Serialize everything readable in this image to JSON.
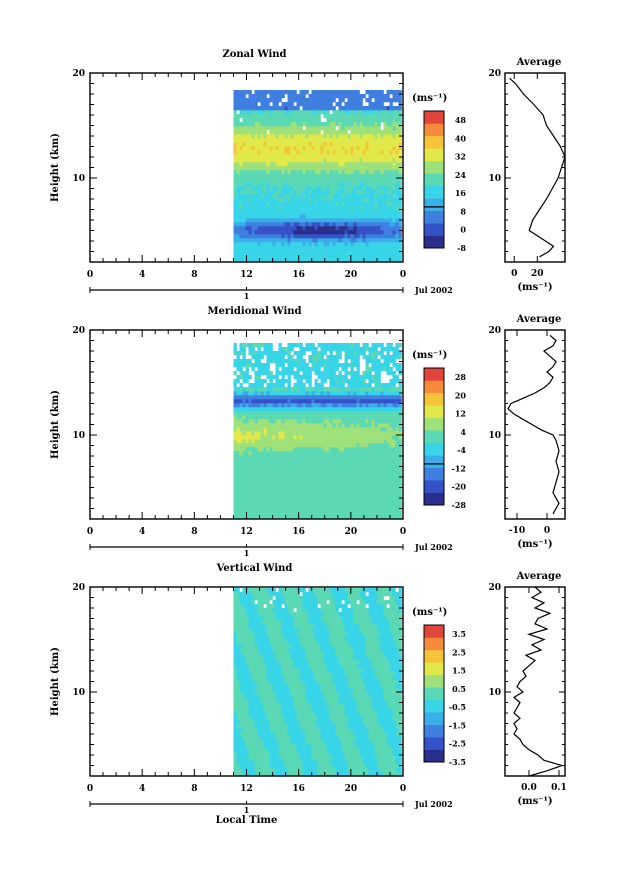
{
  "figure": {
    "xlabel": "Local Time"
  },
  "chart_data": [
    {
      "type": "heatmap",
      "title": "Zonal Wind",
      "ylabel": "Height (km)",
      "ylim": [
        2,
        20
      ],
      "y_ticks": [
        10,
        20
      ],
      "x_ticks": [
        "0",
        "4",
        "8",
        "12",
        "16",
        "20",
        "0"
      ],
      "day_label": "1",
      "date_label": "Jul 2002",
      "data_start_hour": 11,
      "data_top_km": 18.2,
      "colorbar": {
        "unit": "(ms⁻¹)",
        "ticks": [
          "48",
          "40",
          "32",
          "24",
          "16",
          "8",
          "0",
          "-8"
        ],
        "zero_contour": true
      },
      "pattern": {
        "description_values": "Zonal wind speed, stronger near 12-13 km (~32-36 m/s), weak near 5 km (~0-8 m/s)",
        "profile_kind": "zonal"
      },
      "average": {
        "title": "Average",
        "xlabel": "(ms⁻¹)",
        "xlim": [
          -8,
          44
        ],
        "x_ticks": [
          0,
          20
        ],
        "ylim": [
          2,
          20
        ],
        "y_ticks": [
          10,
          20
        ],
        "profile": [
          [
            2.5,
            22
          ],
          [
            3.0,
            30
          ],
          [
            3.5,
            34
          ],
          [
            4.0,
            27
          ],
          [
            4.5,
            20
          ],
          [
            5.0,
            13
          ],
          [
            6.0,
            16
          ],
          [
            7.0,
            22
          ],
          [
            8.0,
            28
          ],
          [
            9.0,
            33
          ],
          [
            10.0,
            38
          ],
          [
            11.0,
            41
          ],
          [
            12.0,
            44
          ],
          [
            13.0,
            40
          ],
          [
            14.0,
            34
          ],
          [
            15.0,
            28
          ],
          [
            16.0,
            25
          ],
          [
            17.0,
            17
          ],
          [
            18.0,
            8
          ],
          [
            19.0,
            1
          ],
          [
            19.5,
            -4
          ]
        ]
      }
    },
    {
      "type": "heatmap",
      "title": "Meridional Wind",
      "ylabel": "Height (km)",
      "ylim": [
        2,
        20
      ],
      "y_ticks": [
        10,
        20
      ],
      "x_ticks": [
        "0",
        "4",
        "8",
        "12",
        "16",
        "20",
        "0"
      ],
      "day_label": "1",
      "date_label": "Jul 2002",
      "data_start_hour": 11,
      "data_top_km": 18.8,
      "colorbar": {
        "unit": "(ms⁻¹)",
        "ticks": [
          "28",
          "20",
          "12",
          "4",
          "-4",
          "-12",
          "-20",
          "-28"
        ],
        "zero_contour": true
      },
      "pattern": {
        "description_values": "Meridional wind, strong negative band near 13 km (~-20 m/s), positive near 10 km (~6 m/s)",
        "profile_kind": "meridional"
      },
      "average": {
        "title": "Average",
        "xlabel": "(ms⁻¹)",
        "xlim": [
          -14,
          6
        ],
        "x_ticks": [
          -10,
          0
        ],
        "ylim": [
          2,
          20
        ],
        "y_ticks": [
          10,
          20
        ],
        "profile": [
          [
            2.5,
            2
          ],
          [
            3.5,
            4
          ],
          [
            4.5,
            2
          ],
          [
            5.5,
            3
          ],
          [
            6.5,
            4
          ],
          [
            7.5,
            3
          ],
          [
            8.5,
            4
          ],
          [
            9.5,
            3
          ],
          [
            10.0,
            2
          ],
          [
            10.5,
            -2
          ],
          [
            11.0,
            -5
          ],
          [
            11.5,
            -8
          ],
          [
            12.0,
            -11
          ],
          [
            12.5,
            -13
          ],
          [
            13.0,
            -12
          ],
          [
            13.5,
            -8
          ],
          [
            14.0,
            -4
          ],
          [
            14.5,
            -1
          ],
          [
            15.0,
            1
          ],
          [
            15.5,
            2
          ],
          [
            16.0,
            0
          ],
          [
            16.5,
            2
          ],
          [
            17.0,
            3
          ],
          [
            17.5,
            1
          ],
          [
            18.0,
            -1
          ],
          [
            18.5,
            2
          ],
          [
            19.0,
            3
          ],
          [
            19.5,
            1
          ]
        ]
      }
    },
    {
      "type": "heatmap",
      "title": "Vertical Wind",
      "ylabel": "Height (km)",
      "ylim": [
        2,
        20
      ],
      "y_ticks": [
        10,
        20
      ],
      "x_ticks": [
        "0",
        "4",
        "8",
        "12",
        "16",
        "20",
        "0"
      ],
      "day_label": "1",
      "date_label": "Jul 2002",
      "data_start_hour": 11,
      "data_top_km": 19.8,
      "colorbar": {
        "unit": "(ms⁻¹)",
        "ticks": [
          "3.5",
          "2.5",
          "1.5",
          "0.5",
          "-0.5",
          "-1.5",
          "-2.5",
          "-3.5"
        ],
        "zero_contour": false
      },
      "pattern": {
        "description_values": "Vertical wind, mostly near zero (-0.5 to 0.5 m/s)",
        "profile_kind": "vertical"
      },
      "average": {
        "title": "Average",
        "xlabel": "(ms⁻¹)",
        "xlim": [
          -0.08,
          0.12
        ],
        "x_ticks": [
          0.0,
          0.1
        ],
        "x_tick_labels": [
          "0.0",
          "0.1"
        ],
        "ylim": [
          2,
          20
        ],
        "y_ticks": [
          10,
          20
        ],
        "profile": [
          [
            2.0,
            0.0
          ],
          [
            2.5,
            0.06
          ],
          [
            3.0,
            0.11
          ],
          [
            3.5,
            0.05
          ],
          [
            4.0,
            0.03
          ],
          [
            4.5,
            0.0
          ],
          [
            5.0,
            -0.02
          ],
          [
            5.5,
            -0.03
          ],
          [
            6.0,
            -0.05
          ],
          [
            6.5,
            -0.04
          ],
          [
            7.0,
            -0.05
          ],
          [
            7.5,
            -0.03
          ],
          [
            8.0,
            -0.05
          ],
          [
            8.5,
            -0.04
          ],
          [
            9.0,
            -0.03
          ],
          [
            9.5,
            -0.05
          ],
          [
            10.0,
            -0.02
          ],
          [
            10.5,
            -0.04
          ],
          [
            11.0,
            -0.03
          ],
          [
            11.5,
            -0.01
          ],
          [
            12.0,
            -0.02
          ],
          [
            12.5,
            0.0
          ],
          [
            13.0,
            0.02
          ],
          [
            13.5,
            -0.01
          ],
          [
            14.0,
            0.04
          ],
          [
            14.5,
            0.01
          ],
          [
            15.0,
            0.05
          ],
          [
            15.5,
            0.0
          ],
          [
            16.0,
            0.06
          ],
          [
            16.5,
            0.02
          ],
          [
            17.0,
            0.03
          ],
          [
            17.5,
            0.07
          ],
          [
            18.0,
            0.02
          ],
          [
            18.5,
            0.05
          ],
          [
            19.0,
            0.01
          ],
          [
            19.5,
            0.04
          ],
          [
            20.0,
            0.02
          ]
        ]
      }
    }
  ]
}
